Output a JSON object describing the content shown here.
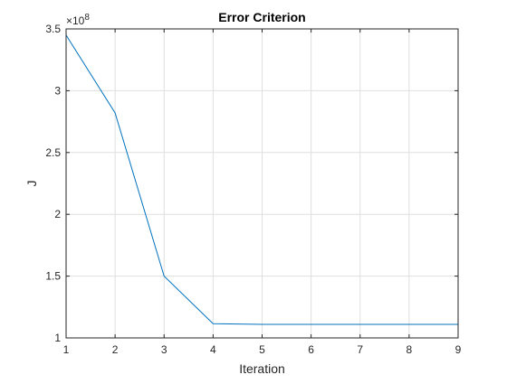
{
  "chart_data": {
    "type": "line",
    "title": "Error Criterion",
    "xlabel": "Iteration",
    "ylabel": "J",
    "exponent_base": "×10",
    "exponent_power": "8",
    "xlim": [
      1,
      9
    ],
    "ylim": [
      100000000,
      350000000
    ],
    "xticks": [
      1,
      2,
      3,
      4,
      5,
      6,
      7,
      8,
      9
    ],
    "xtick_labels": [
      "1",
      "2",
      "3",
      "4",
      "5",
      "6",
      "7",
      "8",
      "9"
    ],
    "yticks": [
      100000000,
      150000000,
      200000000,
      250000000,
      300000000,
      350000000
    ],
    "ytick_labels": [
      "1",
      "1.5",
      "2",
      "2.5",
      "3",
      "3.5"
    ],
    "grid": true,
    "series": [
      {
        "color": "#0072bd",
        "x": [
          1,
          2,
          3,
          4,
          5,
          6,
          7,
          8,
          9
        ],
        "y": [
          345000000,
          282000000,
          150000000,
          111500000,
          111000000,
          111000000,
          111000000,
          111000000,
          111000000
        ]
      }
    ]
  }
}
